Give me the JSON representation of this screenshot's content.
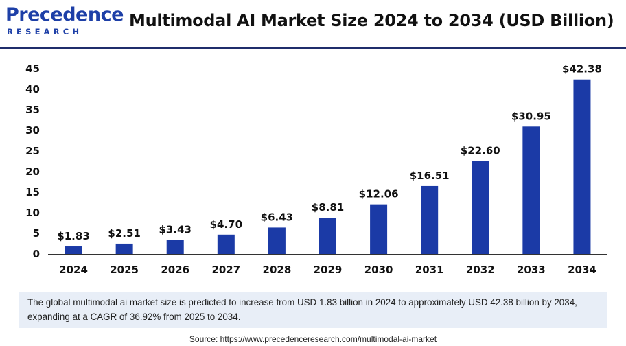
{
  "header": {
    "logo_main": "Precedence",
    "logo_sub": "RESEARCH",
    "title": "Multimodal AI Market Size 2024 to 2034 (USD Billion)"
  },
  "colors": {
    "bar": "#1b3aa6",
    "brand": "#1d3fa7",
    "rule": "#1f2d6b"
  },
  "chart_data": {
    "type": "bar",
    "title": "Multimodal AI Market Size 2024 to 2034 (USD Billion)",
    "xlabel": "",
    "ylabel": "",
    "categories": [
      "2024",
      "2025",
      "2026",
      "2027",
      "2028",
      "2029",
      "2030",
      "2031",
      "2032",
      "2033",
      "2034"
    ],
    "values": [
      1.83,
      2.51,
      3.43,
      4.7,
      6.43,
      8.81,
      12.06,
      16.51,
      22.6,
      30.95,
      42.38
    ],
    "data_labels": [
      "$1.83",
      "$2.51",
      "$3.43",
      "$4.70",
      "$6.43",
      "$8.81",
      "$12.06",
      "$16.51",
      "$22.60",
      "$30.95",
      "$42.38"
    ],
    "yticks": [
      0,
      5,
      10,
      15,
      20,
      25,
      30,
      35,
      40,
      45
    ],
    "ylim": [
      0,
      45
    ],
    "grid": false,
    "legend": "none"
  },
  "summary": {
    "text": "The global multimodal ai market size is predicted to increase from USD 1.83 billion in 2024 to approximately USD 42.38 billion by 2034, expanding at a CAGR of 36.92% from 2025 to 2034."
  },
  "source": {
    "text": "Source: https://www.precedenceresearch.com/multimodal-ai-market"
  }
}
